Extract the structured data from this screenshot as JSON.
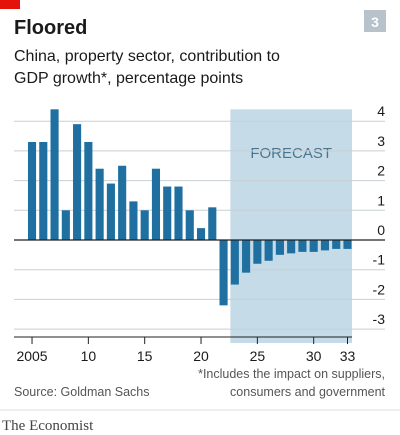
{
  "chart_data": {
    "type": "bar",
    "title": "Floored",
    "chart_number": "3",
    "subtitle": [
      "China, property sector, contribution to",
      "GDP growth*, percentage points"
    ],
    "source": "Source: Goldman Sachs",
    "footnote": [
      "*Includes the impact on suppliers,",
      "consumers and government"
    ],
    "publisher": "The Economist",
    "annotation": "FORECAST",
    "forecast_range": [
      2022.6,
      2033.4
    ],
    "x": [
      2005,
      2006,
      2007,
      2008,
      2009,
      2010,
      2011,
      2012,
      2013,
      2014,
      2015,
      2016,
      2017,
      2018,
      2019,
      2020,
      2021,
      2022,
      2023,
      2024,
      2025,
      2026,
      2027,
      2028,
      2029,
      2030,
      2031,
      2032,
      2033
    ],
    "values": [
      3.3,
      3.3,
      4.4,
      1.0,
      3.9,
      3.3,
      2.4,
      1.9,
      2.5,
      1.3,
      1.0,
      2.4,
      1.8,
      1.8,
      1.0,
      0.4,
      1.1,
      -2.2,
      -1.5,
      -1.1,
      -0.8,
      -0.7,
      -0.5,
      -0.45,
      -0.4,
      -0.4,
      -0.35,
      -0.3,
      -0.3
    ],
    "color": "#1f6fa0",
    "forecast_color": "#c5dce8",
    "xlim": [
      2003.4,
      2033.4
    ],
    "xticks": [
      {
        "value": 2005,
        "label": "2005"
      },
      {
        "value": 2010,
        "label": "10"
      },
      {
        "value": 2015,
        "label": "15"
      },
      {
        "value": 2020,
        "label": "20"
      },
      {
        "value": 2025,
        "label": "25"
      },
      {
        "value": 2030,
        "label": "30"
      },
      {
        "value": 2033,
        "label": "33"
      }
    ],
    "ylim": [
      -3.2,
      4.4
    ],
    "yticks": [
      -3,
      -2,
      -1,
      0,
      1,
      2,
      3,
      4
    ],
    "grid": true
  }
}
